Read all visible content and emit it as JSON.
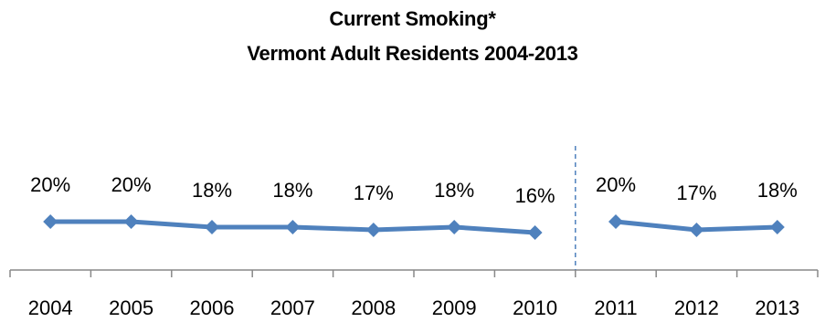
{
  "chart_data": {
    "type": "line",
    "title": "Current Smoking*",
    "subtitle": "Vermont Adult Residents 2004-2013",
    "xlabel": "",
    "ylabel": "",
    "categories": [
      "2004",
      "2005",
      "2006",
      "2007",
      "2008",
      "2009",
      "2010",
      "2011",
      "2012",
      "2013"
    ],
    "series": [
      {
        "values": [
          20,
          20,
          18,
          18,
          17,
          18,
          16,
          null,
          null,
          null
        ],
        "labels": [
          "20%",
          "20%",
          "18%",
          "18%",
          "17%",
          "18%",
          "16%",
          null,
          null,
          null
        ]
      },
      {
        "values": [
          null,
          null,
          null,
          null,
          null,
          null,
          null,
          20,
          17,
          18
        ],
        "labels": [
          null,
          null,
          null,
          null,
          null,
          null,
          null,
          "20%",
          "17%",
          "18%"
        ]
      }
    ],
    "break_between": [
      "2010",
      "2011"
    ],
    "color": "#4F81BD",
    "divider_color": "#4F81BD",
    "grid": false,
    "legend": "none"
  }
}
